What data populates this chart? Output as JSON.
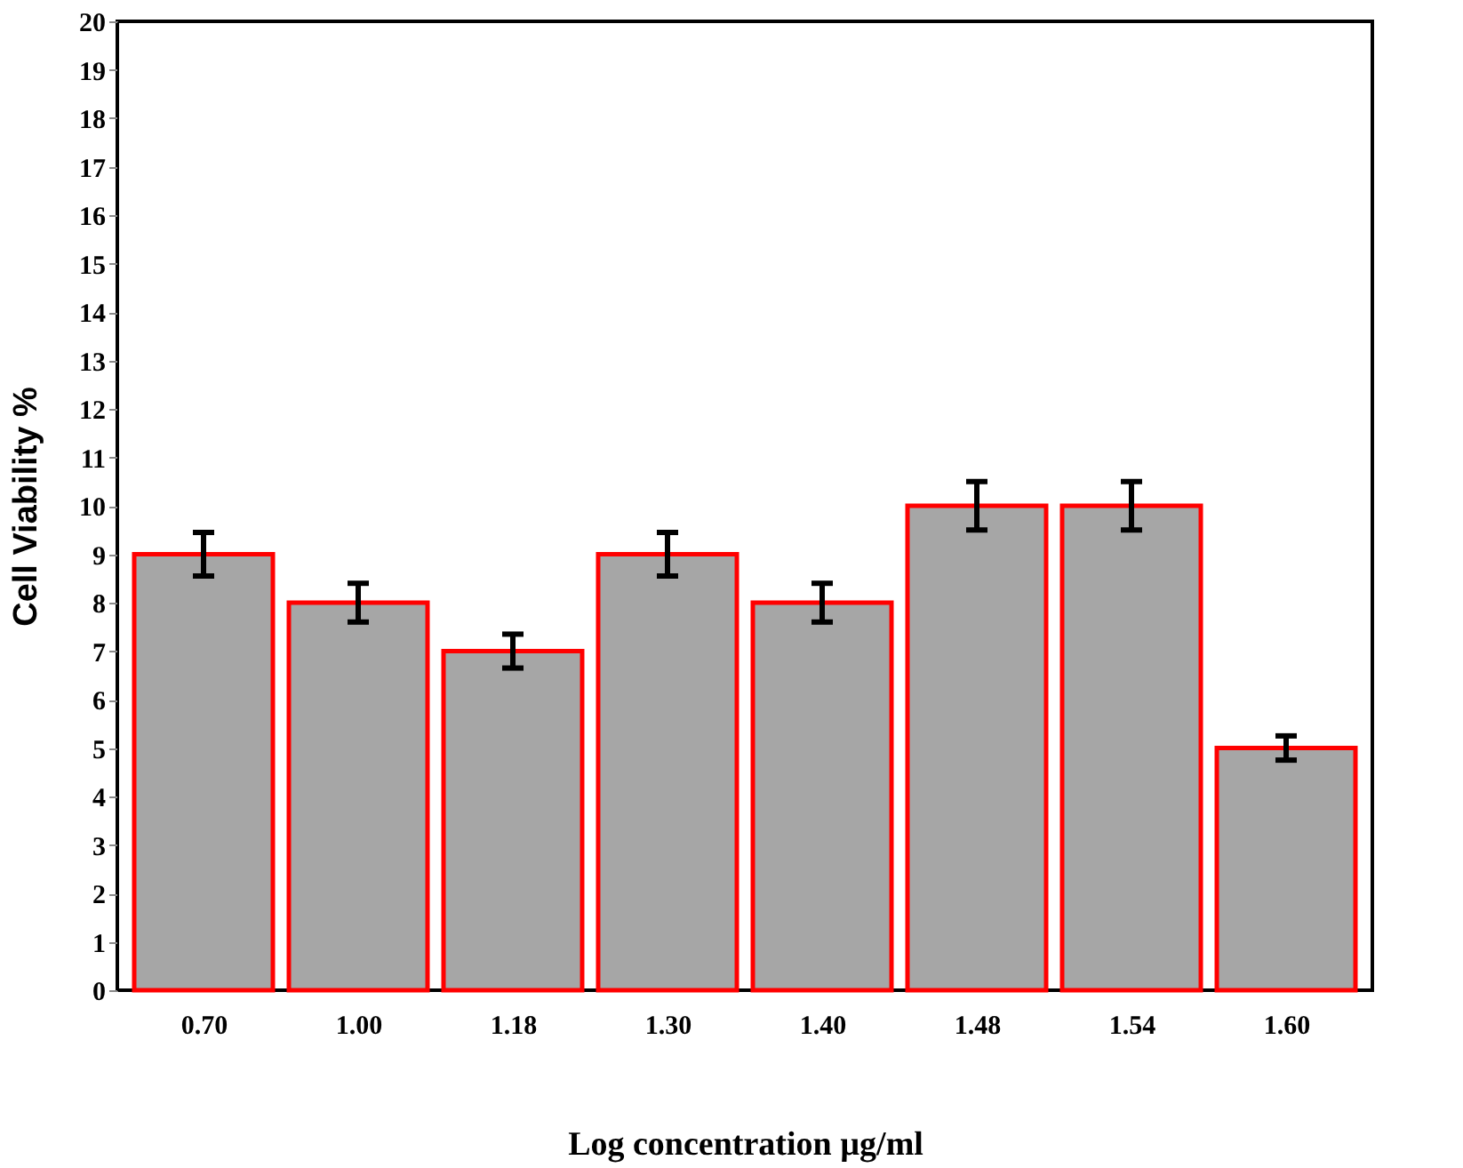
{
  "chart_data": {
    "type": "bar",
    "xlabel": "Log concentration µg/ml",
    "ylabel": "Cell Viability %",
    "categories": [
      "0.70",
      "1.00",
      "1.18",
      "1.30",
      "1.40",
      "1.48",
      "1.54",
      "1.60"
    ],
    "values": [
      9,
      8,
      7,
      9,
      8,
      10,
      10,
      5
    ],
    "errors": [
      0.45,
      0.4,
      0.35,
      0.45,
      0.4,
      0.5,
      0.5,
      0.25
    ],
    "color": "#a6a6a6",
    "ylim": [
      0,
      20
    ],
    "yticks": [
      0,
      1,
      2,
      3,
      4,
      5,
      6,
      7,
      8,
      9,
      10,
      11,
      12,
      13,
      14,
      15,
      16,
      17,
      18,
      19,
      20
    ],
    "grid": false
  }
}
